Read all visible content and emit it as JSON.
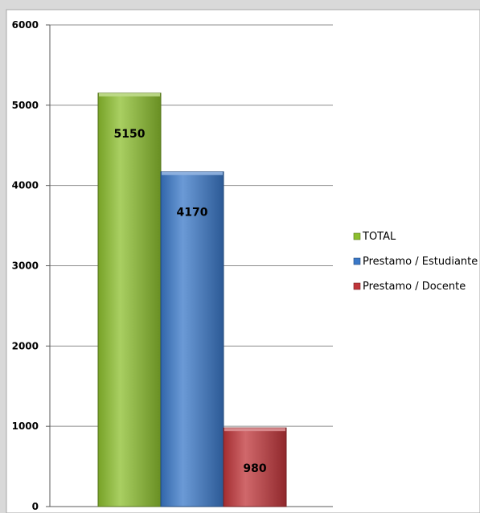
{
  "chart_data": {
    "type": "bar",
    "categories": [
      "TOTAL",
      "Prestamo / Estudiante",
      "Prestamo / Docente"
    ],
    "values": [
      5150,
      4170,
      980
    ],
    "data_labels": [
      "5150",
      "4170",
      "980"
    ],
    "series_colors": [
      "#8cbf2e",
      "#3a78c8",
      "#c0353a"
    ],
    "y_ticks": [
      0,
      1000,
      2000,
      3000,
      4000,
      5000,
      6000
    ],
    "y_tick_labels": [
      "0",
      "1000",
      "2000",
      "3000",
      "4000",
      "5000",
      "6000"
    ],
    "ylim": [
      0,
      6000
    ],
    "grid": true,
    "legend_position": "right",
    "legend": [
      {
        "label": "TOTAL",
        "color": "#8cbf2e"
      },
      {
        "label": "Prestamo / Estudiante",
        "color": "#3a78c8"
      },
      {
        "label": "Prestamo / Docente",
        "color": "#c0353a"
      }
    ]
  }
}
